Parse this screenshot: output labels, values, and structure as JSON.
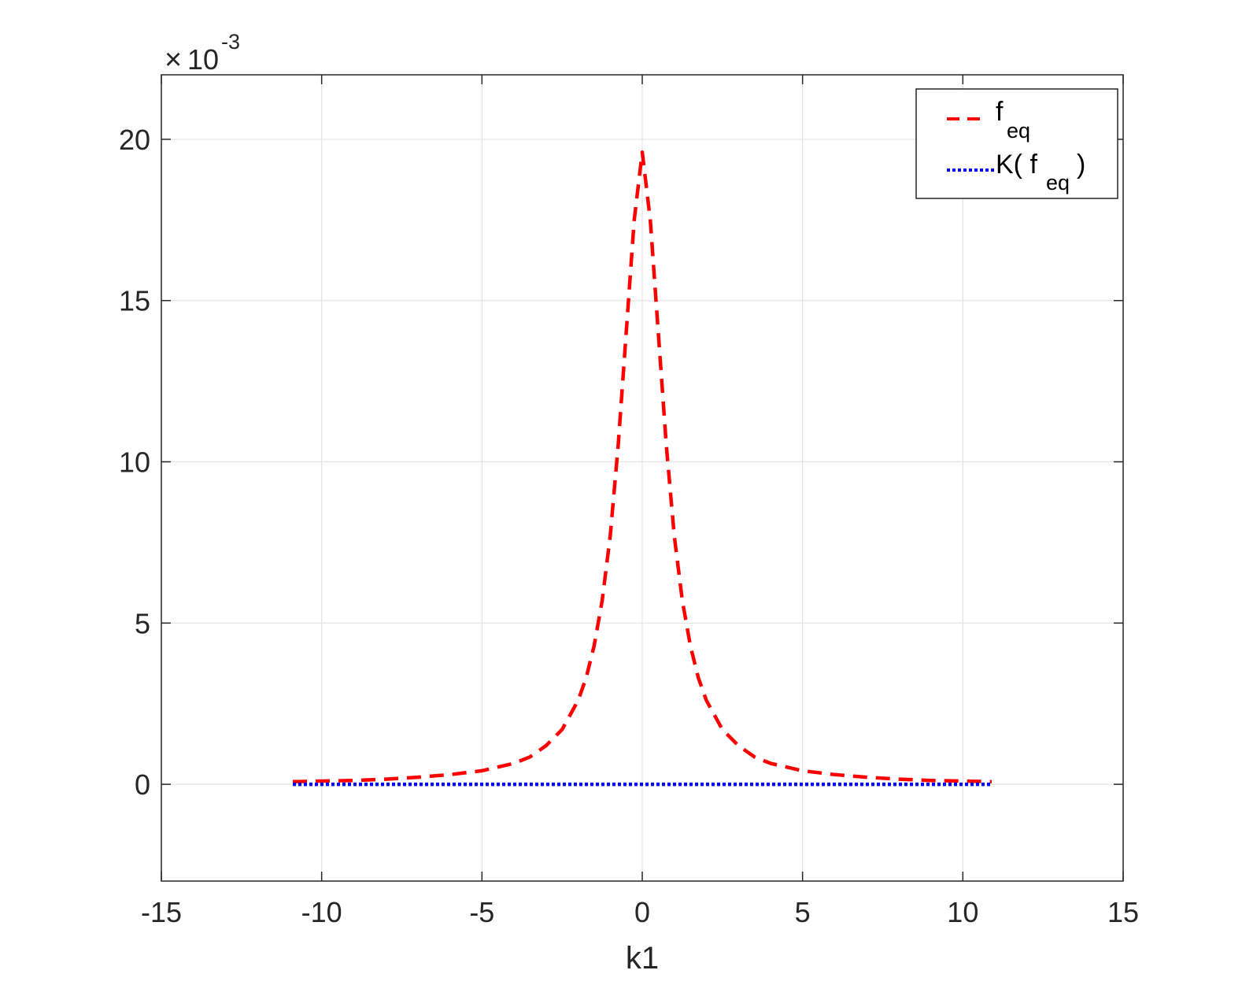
{
  "chart_data": {
    "type": "line",
    "xlabel": "k1",
    "ylabel": "",
    "xlim": [
      -15,
      15
    ],
    "ylim": [
      -3,
      22
    ],
    "xticks": [
      "-15",
      "-10",
      "-5",
      "0",
      "5",
      "10",
      "15"
    ],
    "yticks": [
      "0",
      "5",
      "10",
      "15",
      "20"
    ],
    "y_multiplier": {
      "base": "10",
      "exponent": "-3",
      "prefix": "×"
    },
    "grid": true,
    "legend_position": "top-right",
    "series": [
      {
        "name": "f",
        "name_sub": "eq",
        "legend_label": "f_eq",
        "color": "#ff0000",
        "style": "dashed",
        "x": [
          -10.9,
          -10,
          -9,
          -8,
          -7,
          -6,
          -5,
          -4,
          -3.5,
          -3,
          -2.5,
          -2,
          -1.75,
          -1.5,
          -1.25,
          -1,
          -0.75,
          -0.5,
          -0.25,
          0,
          0.25,
          0.5,
          0.75,
          1,
          1.25,
          1.5,
          1.75,
          2,
          2.5,
          3,
          3.5,
          4,
          5,
          6,
          7,
          8,
          9,
          10,
          10.9
        ],
        "y": [
          0.08,
          0.1,
          0.12,
          0.16,
          0.22,
          0.3,
          0.42,
          0.65,
          0.85,
          1.2,
          1.7,
          2.6,
          3.3,
          4.3,
          5.7,
          7.7,
          10.5,
          14.0,
          17.5,
          19.6,
          17.5,
          14.0,
          10.5,
          7.7,
          5.7,
          4.3,
          3.3,
          2.6,
          1.7,
          1.2,
          0.85,
          0.65,
          0.42,
          0.3,
          0.22,
          0.16,
          0.12,
          0.1,
          0.08
        ]
      },
      {
        "name": "K( f",
        "name_sub": "eq",
        "name_suffix": " )",
        "legend_label": "K( f_eq )",
        "color": "#0000ff",
        "style": "dotted",
        "x": [
          -10.9,
          10.9
        ],
        "y": [
          0,
          0
        ]
      }
    ]
  }
}
